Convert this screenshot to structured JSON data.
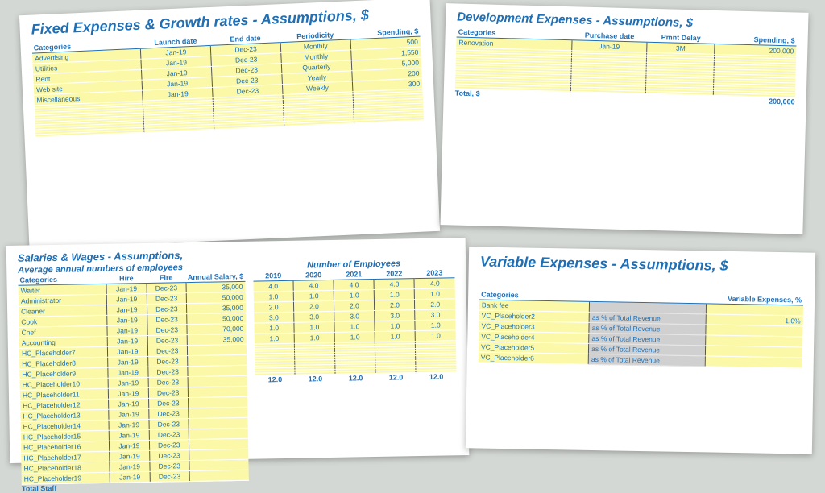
{
  "fixed": {
    "title": "Fixed Expenses & Growth rates - Assumptions, $",
    "headers": {
      "categories": "Categories",
      "launch": "Launch date",
      "end": "End date",
      "period": "Periodicity",
      "spend": "Spending, $"
    },
    "rows": [
      {
        "cat": "Advertising",
        "launch": "Jan-19",
        "end": "Dec-23",
        "period": "Monthly",
        "spend": "500"
      },
      {
        "cat": "Utilities",
        "launch": "Jan-19",
        "end": "Dec-23",
        "period": "Monthly",
        "spend": "1,550"
      },
      {
        "cat": "Rent",
        "launch": "Jan-19",
        "end": "Dec-23",
        "period": "Quarterly",
        "spend": "5,000"
      },
      {
        "cat": "Web site",
        "launch": "Jan-19",
        "end": "Dec-23",
        "period": "Yearly",
        "spend": "200"
      },
      {
        "cat": "Miscellaneous",
        "launch": "Jan-19",
        "end": "Dec-23",
        "period": "Weekly",
        "spend": "300"
      }
    ]
  },
  "dev": {
    "title": "Development Expenses - Assumptions, $",
    "headers": {
      "categories": "Categories",
      "pdate": "Purchase date",
      "delay": "Pmnt Delay",
      "spend": "Spending, $"
    },
    "rows": [
      {
        "cat": "Renovation",
        "pdate": "Jan-19",
        "delay": "3M",
        "spend": "200,000"
      }
    ],
    "total_label": "Total, $",
    "total_val": "200,000"
  },
  "sal": {
    "title": "Salaries & Wages - Assumptions,",
    "left_sub": "Average annual numbers of employees",
    "right_sub": "Number of Employees",
    "lheaders": {
      "cat": "Categories",
      "hire": "Hire",
      "fire": "Fire",
      "annual": "Annual Salary, $"
    },
    "years": [
      "2019",
      "2020",
      "2021",
      "2022",
      "2023"
    ],
    "lrows": [
      {
        "cat": "Waiter",
        "hire": "Jan-19",
        "fire": "Dec-23",
        "sal": "35,000"
      },
      {
        "cat": "Administrator",
        "hire": "Jan-19",
        "fire": "Dec-23",
        "sal": "50,000"
      },
      {
        "cat": "Cleaner",
        "hire": "Jan-19",
        "fire": "Dec-23",
        "sal": "35,000"
      },
      {
        "cat": "Cook",
        "hire": "Jan-19",
        "fire": "Dec-23",
        "sal": "50,000"
      },
      {
        "cat": "Chef",
        "hire": "Jan-19",
        "fire": "Dec-23",
        "sal": "70,000"
      },
      {
        "cat": "Accounting",
        "hire": "Jan-19",
        "fire": "Dec-23",
        "sal": "35,000"
      },
      {
        "cat": "HC_Placeholder7",
        "hire": "Jan-19",
        "fire": "Dec-23",
        "sal": ""
      },
      {
        "cat": "HC_Placeholder8",
        "hire": "Jan-19",
        "fire": "Dec-23",
        "sal": ""
      },
      {
        "cat": "HC_Placeholder9",
        "hire": "Jan-19",
        "fire": "Dec-23",
        "sal": ""
      },
      {
        "cat": "HC_Placeholder10",
        "hire": "Jan-19",
        "fire": "Dec-23",
        "sal": ""
      },
      {
        "cat": "HC_Placeholder11",
        "hire": "Jan-19",
        "fire": "Dec-23",
        "sal": ""
      },
      {
        "cat": "HC_Placeholder12",
        "hire": "Jan-19",
        "fire": "Dec-23",
        "sal": ""
      },
      {
        "cat": "HC_Placeholder13",
        "hire": "Jan-19",
        "fire": "Dec-23",
        "sal": ""
      },
      {
        "cat": "HC_Placeholder14",
        "hire": "Jan-19",
        "fire": "Dec-23",
        "sal": ""
      },
      {
        "cat": "HC_Placeholder15",
        "hire": "Jan-19",
        "fire": "Dec-23",
        "sal": ""
      },
      {
        "cat": "HC_Placeholder16",
        "hire": "Jan-19",
        "fire": "Dec-23",
        "sal": ""
      },
      {
        "cat": "HC_Placeholder17",
        "hire": "Jan-19",
        "fire": "Dec-23",
        "sal": ""
      },
      {
        "cat": "HC_Placeholder18",
        "hire": "Jan-19",
        "fire": "Dec-23",
        "sal": ""
      },
      {
        "cat": "HC_Placeholder19",
        "hire": "Jan-19",
        "fire": "Dec-23",
        "sal": ""
      }
    ],
    "rrows": [
      [
        "4.0",
        "4.0",
        "4.0",
        "4.0",
        "4.0"
      ],
      [
        "1.0",
        "1.0",
        "1.0",
        "1.0",
        "1.0"
      ],
      [
        "2.0",
        "2.0",
        "2.0",
        "2.0",
        "2.0"
      ],
      [
        "3.0",
        "3.0",
        "3.0",
        "3.0",
        "3.0"
      ],
      [
        "1.0",
        "1.0",
        "1.0",
        "1.0",
        "1.0"
      ],
      [
        "1.0",
        "1.0",
        "1.0",
        "1.0",
        "1.0"
      ]
    ],
    "total_label": "Total Staff",
    "totals": [
      "12.0",
      "12.0",
      "12.0",
      "12.0",
      "12.0"
    ]
  },
  "var": {
    "title": "Variable Expenses - Assumptions, $",
    "headers": {
      "cat": "Categories",
      "desc": "",
      "pct": "Variable Expenses, %"
    },
    "rows": [
      {
        "cat": "Bank fee",
        "desc": "",
        "pct": ""
      },
      {
        "cat": "VC_Placeholder2",
        "desc": "as % of Total Revenue",
        "pct": "1.0%"
      },
      {
        "cat": "VC_Placeholder3",
        "desc": "as % of Total Revenue",
        "pct": ""
      },
      {
        "cat": "VC_Placeholder4",
        "desc": "as % of Total Revenue",
        "pct": ""
      },
      {
        "cat": "VC_Placeholder5",
        "desc": "as % of Total Revenue",
        "pct": ""
      },
      {
        "cat": "VC_Placeholder6",
        "desc": "as % of Total Revenue",
        "pct": ""
      }
    ]
  }
}
